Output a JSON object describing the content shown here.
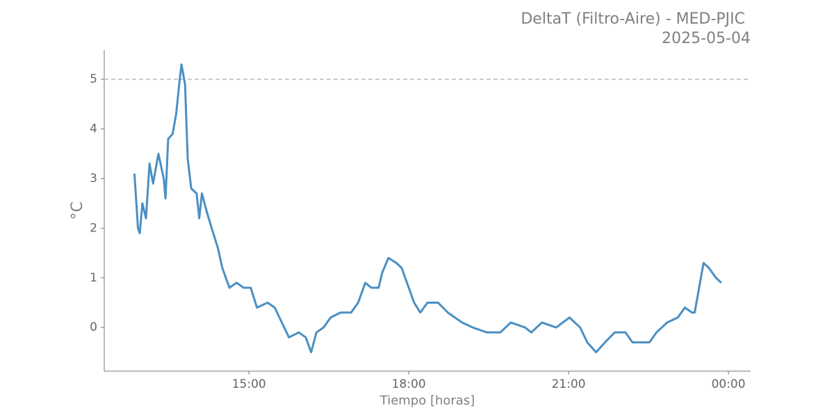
{
  "chart_data": {
    "type": "line",
    "title": [
      "DeltaT (Filtro-Aire) - MED-PJIC",
      "2025-05-04"
    ],
    "xlabel": "Tiempo [horas]",
    "ylabel": "°C",
    "x": [
      "12:51",
      "12:55",
      "12:57",
      "13:00",
      "13:04",
      "13:08",
      "13:12",
      "13:18",
      "13:24",
      "13:26",
      "13:29",
      "13:34",
      "13:38",
      "13:42",
      "13:44",
      "13:48",
      "13:51",
      "13:55",
      "14:01",
      "14:04",
      "14:07",
      "14:13",
      "14:18",
      "14:25",
      "14:30",
      "14:38",
      "14:46",
      "14:54",
      "15:02",
      "15:09",
      "15:21",
      "15:29",
      "15:37",
      "15:45",
      "15:56",
      "16:04",
      "16:10",
      "16:16",
      "16:24",
      "16:32",
      "16:43",
      "16:55",
      "17:03",
      "17:11",
      "17:18",
      "17:26",
      "17:30",
      "17:37",
      "17:46",
      "17:52",
      "17:58",
      "18:06",
      "18:13",
      "18:21",
      "18:33",
      "18:44",
      "18:52",
      "19:00",
      "19:12",
      "19:28",
      "19:43",
      "19:55",
      "20:11",
      "20:18",
      "20:30",
      "20:46",
      "21:01",
      "21:13",
      "21:21",
      "21:31",
      "21:41",
      "21:52",
      "22:04",
      "22:12",
      "22:24",
      "22:31",
      "22:39",
      "22:51",
      "23:03",
      "23:11",
      "23:19",
      "23:22",
      "23:26",
      "23:32",
      "23:38",
      "23:46",
      "23:52"
    ],
    "series": [
      {
        "name": "DeltaT",
        "color": "#4a8fc2",
        "values": [
          3.1,
          2.0,
          1.9,
          2.5,
          2.2,
          3.3,
          2.9,
          3.5,
          3.0,
          2.6,
          3.8,
          3.9,
          4.3,
          5.0,
          5.3,
          4.9,
          3.4,
          2.8,
          2.7,
          2.2,
          2.7,
          2.3,
          2.0,
          1.6,
          1.2,
          0.8,
          0.9,
          0.8,
          0.8,
          0.4,
          0.5,
          0.4,
          0.1,
          -0.2,
          -0.1,
          -0.2,
          -0.5,
          -0.1,
          0.0,
          0.2,
          0.3,
          0.3,
          0.5,
          0.9,
          0.8,
          0.8,
          1.1,
          1.4,
          1.3,
          1.2,
          0.9,
          0.5,
          0.3,
          0.5,
          0.5,
          0.3,
          0.2,
          0.1,
          0.0,
          -0.1,
          -0.1,
          0.1,
          0.0,
          -0.1,
          0.1,
          0.0,
          0.2,
          0.0,
          -0.3,
          -0.5,
          -0.3,
          -0.1,
          -0.1,
          -0.3,
          -0.3,
          -0.3,
          -0.1,
          0.1,
          0.2,
          0.4,
          0.3,
          0.3,
          0.7,
          1.3,
          1.2,
          1.0,
          0.9
        ]
      }
    ],
    "threshold": 5,
    "xlim": [
      "12:17",
      "00:25"
    ],
    "xticks": [
      "15:00",
      "18:00",
      "21:00",
      "00:00"
    ],
    "ylim": [
      -0.88,
      5.59
    ],
    "yticks": [
      0,
      1,
      2,
      3,
      4,
      5
    ]
  }
}
